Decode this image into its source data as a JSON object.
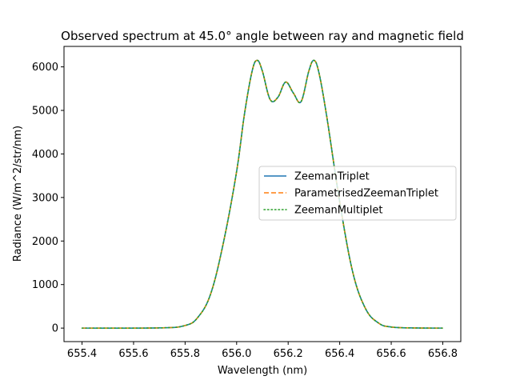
{
  "chart_data": {
    "type": "line",
    "title": "Observed spectrum at 45.0° angle between ray and magnetic field",
    "xlabel": "Wavelength (nm)",
    "ylabel": "Radiance (W/m^2/str/nm)",
    "xlim": [
      655.33,
      656.87
    ],
    "ylim": [
      -310,
      6470
    ],
    "xticks": [
      "655.4",
      "655.6",
      "655.8",
      "656.0",
      "656.2",
      "656.4",
      "656.6",
      "656.8"
    ],
    "yticks": [
      "0",
      "1000",
      "2000",
      "3000",
      "4000",
      "5000",
      "6000"
    ],
    "grid": false,
    "legend_position": "center-right",
    "series": [
      {
        "name": "ZeemanTriplet",
        "color": "#1f77b4",
        "style": "solid"
      },
      {
        "name": "ParametrisedZeemanTriplet",
        "color": "#ff7f0e",
        "style": "dashed"
      },
      {
        "name": "ZeemanMultiplet",
        "color": "#2ca02c",
        "style": "dotted"
      }
    ],
    "x": [
      655.4,
      655.7,
      655.8,
      655.85,
      655.9,
      655.95,
      656.0,
      656.03,
      656.06,
      656.08,
      656.1,
      656.13,
      656.16,
      656.19,
      656.22,
      656.25,
      656.28,
      656.3,
      656.32,
      656.35,
      656.4,
      656.45,
      656.5,
      656.55,
      656.6,
      656.7,
      656.8
    ],
    "y": [
      0,
      5,
      60,
      250,
      800,
      2000,
      3600,
      4900,
      5900,
      6150,
      5900,
      5250,
      5300,
      5650,
      5400,
      5200,
      5900,
      6150,
      5850,
      4850,
      2900,
      1300,
      450,
      120,
      25,
      3,
      0
    ]
  }
}
